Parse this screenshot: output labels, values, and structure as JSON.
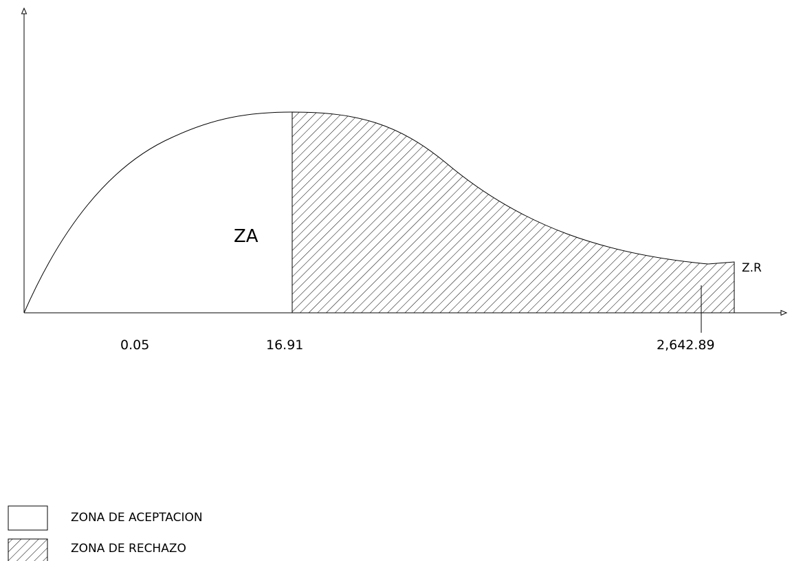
{
  "diagram": {
    "region_labels": {
      "acceptance": "ZA",
      "rejection": "Z.R"
    },
    "tick_labels": {
      "first": "0.05",
      "critical": "16.91",
      "end": "2,642.89"
    }
  },
  "legend": {
    "items": [
      {
        "label": "ZONA DE ACEPTACION",
        "swatch": "blank"
      },
      {
        "label": "ZONA DE RECHAZO",
        "swatch": "hatched"
      }
    ]
  },
  "colors": {
    "stroke": "#000000",
    "background": "#ffffff"
  }
}
